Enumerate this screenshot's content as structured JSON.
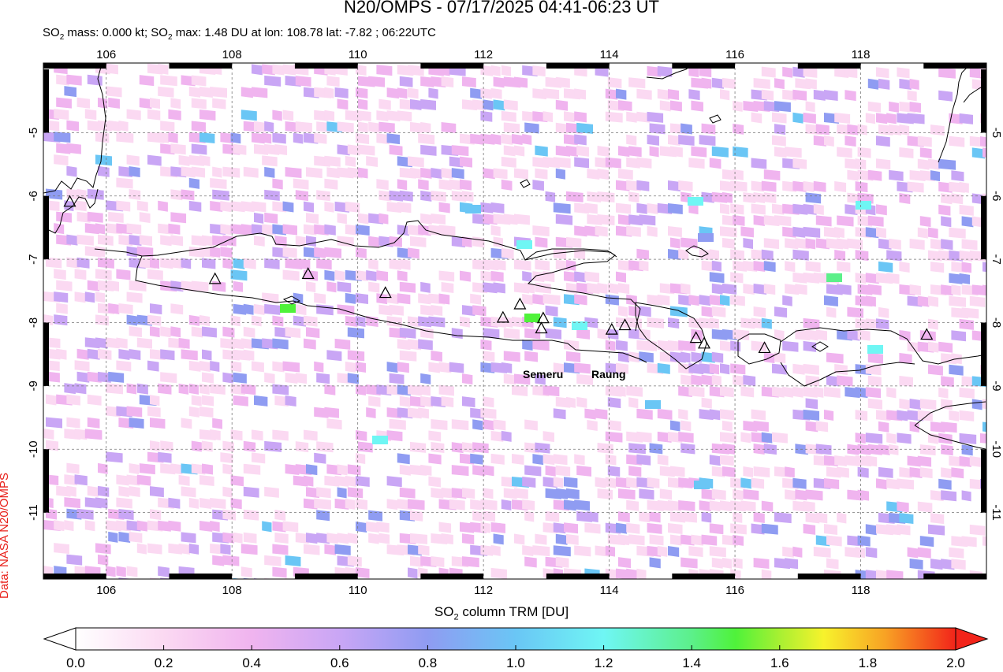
{
  "title": "N20/OMPS - 07/17/2025 04:41-06:23 UT",
  "subtitle": {
    "prefix1": "SO",
    "sub1": "2",
    "text1": " mass: 0.000 kt; SO",
    "sub2": "2",
    "text2": " max: 1.48 DU at lon: 108.78 lat: -7.82 ; 06:22UTC"
  },
  "credit": "Data: NASA N20/OMPS",
  "map": {
    "lon_range": [
      105,
      120
    ],
    "lat_range": [
      -12.05,
      -3.9
    ],
    "lon_ticks": [
      "106",
      "108",
      "110",
      "112",
      "114",
      "116",
      "118"
    ],
    "lat_ticks": [
      "-5",
      "-6",
      "-7",
      "-8",
      "-9",
      "-10",
      "-11"
    ],
    "volcano_labels": {
      "semeru": "Semeru",
      "raung": "Raung"
    }
  },
  "colorbar": {
    "label_prefix": "SO",
    "label_sub": "2",
    "label_text": " column TRM [DU]",
    "ticks": [
      "0.0",
      "0.2",
      "0.4",
      "0.6",
      "0.8",
      "1.0",
      "1.2",
      "1.4",
      "1.6",
      "1.8",
      "2.0"
    ],
    "min": 0.0,
    "max": 2.0
  },
  "colors": {
    "coast": "#000000",
    "grid": "#777777",
    "cmap": [
      "#ffffff",
      "#fbd9f2",
      "#f0b4ef",
      "#c9a6f5",
      "#8f9cf2",
      "#6ac6f5",
      "#6ff6f4",
      "#5cf08a",
      "#4ff23a",
      "#f7f22c",
      "#f8a224",
      "#f2241a"
    ]
  }
}
